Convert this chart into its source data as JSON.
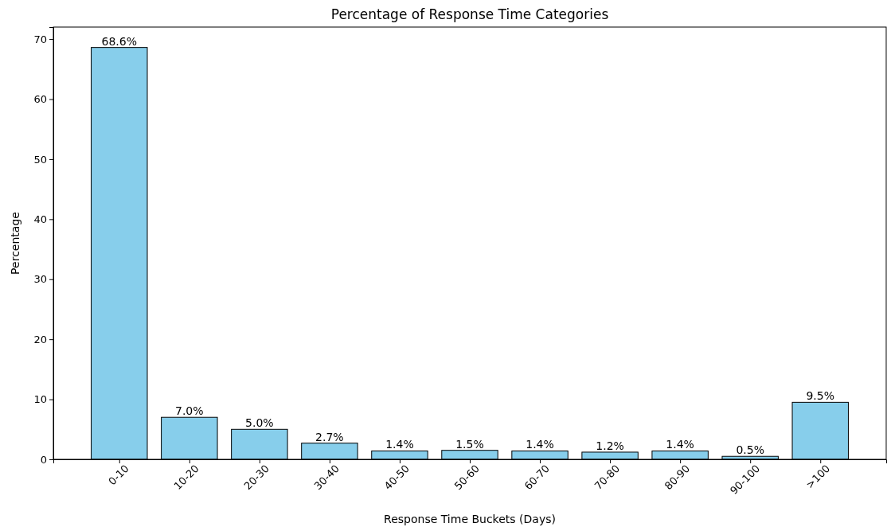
{
  "chart_data": {
    "type": "bar",
    "title": "Percentage of Response Time Categories",
    "xlabel": "Response Time Buckets (Days)",
    "ylabel": "Percentage",
    "categories": [
      "0-10",
      "10-20",
      "20-30",
      "30-40",
      "40-50",
      "50-60",
      "60-70",
      "70-80",
      "80-90",
      "90-100",
      ">100"
    ],
    "values": [
      68.6,
      7.0,
      5.0,
      2.7,
      1.4,
      1.5,
      1.4,
      1.2,
      1.4,
      0.5,
      9.5
    ],
    "value_labels": [
      "68.6%",
      "7.0%",
      "5.0%",
      "2.7%",
      "1.4%",
      "1.5%",
      "1.4%",
      "1.2%",
      "1.4%",
      "0.5%",
      "9.5%"
    ],
    "color": "#87ceeb",
    "ylim": [
      0,
      72
    ],
    "yticks": [
      0,
      10,
      20,
      30,
      40,
      50,
      60,
      70
    ],
    "grid": false
  }
}
